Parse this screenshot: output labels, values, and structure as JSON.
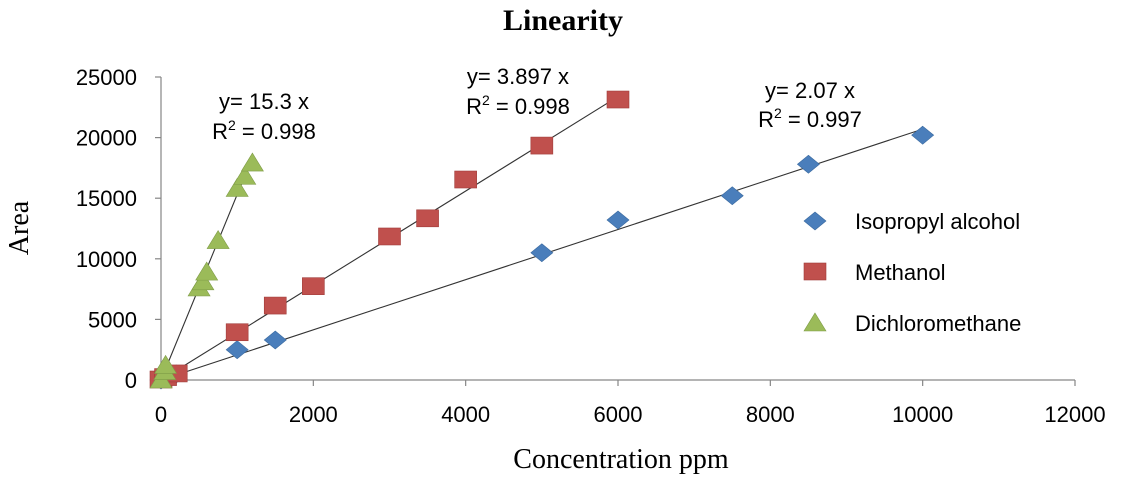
{
  "chart_data": {
    "type": "scatter",
    "title": "Linearity",
    "xlabel": "Concentration ppm",
    "ylabel": "Area",
    "xlim": [
      0,
      12000
    ],
    "ylim": [
      0,
      25000
    ],
    "x_ticks": [
      0,
      2000,
      4000,
      6000,
      8000,
      10000,
      12000
    ],
    "y_ticks": [
      0,
      5000,
      10000,
      15000,
      20000,
      25000
    ],
    "grid": false,
    "legend_position": "right",
    "series": [
      {
        "name": "Isopropyl alcohol",
        "marker": "diamond",
        "color": "#4a7ebb",
        "points": [
          [
            0,
            0
          ],
          [
            200,
            500
          ],
          [
            1000,
            2500
          ],
          [
            1500,
            3300
          ],
          [
            5000,
            10500
          ],
          [
            6000,
            13200
          ],
          [
            7500,
            15200
          ],
          [
            8500,
            17800
          ],
          [
            10000,
            20200
          ]
        ],
        "trendline": {
          "slope": 2.07,
          "x_end": 10000
        },
        "equation": "y= 2.07 x",
        "r2_label": "R",
        "r2_exp": "2",
        "r2_value": " = 0.997"
      },
      {
        "name": "Methanol",
        "marker": "square",
        "color": "#c0504d",
        "points": [
          [
            0,
            0
          ],
          [
            60,
            200
          ],
          [
            200,
            500
          ],
          [
            1000,
            3900
          ],
          [
            1500,
            6100
          ],
          [
            2000,
            7700
          ],
          [
            3000,
            11800
          ],
          [
            3500,
            13300
          ],
          [
            4000,
            16500
          ],
          [
            5000,
            19300
          ],
          [
            6000,
            23100
          ]
        ],
        "trendline": {
          "slope": 3.897,
          "x_end": 5900
        },
        "equation": "y= 3.897 x",
        "r2_label": "R",
        "r2_exp": "2",
        "r2_value": " = 0.998"
      },
      {
        "name": "Dichloromethane",
        "marker": "triangle",
        "color": "#9bbb59",
        "points": [
          [
            0,
            0
          ],
          [
            50,
            700
          ],
          [
            60,
            1200
          ],
          [
            500,
            7600
          ],
          [
            550,
            8100
          ],
          [
            600,
            8900
          ],
          [
            750,
            11500
          ],
          [
            1000,
            15800
          ],
          [
            1100,
            16800
          ],
          [
            1200,
            17900
          ]
        ],
        "trendline": {
          "slope": 15.3,
          "x_end": 1150
        },
        "equation": "y= 15.3 x",
        "r2_label": "R",
        "r2_exp": "2",
        "r2_value": " = 0.998"
      }
    ]
  }
}
